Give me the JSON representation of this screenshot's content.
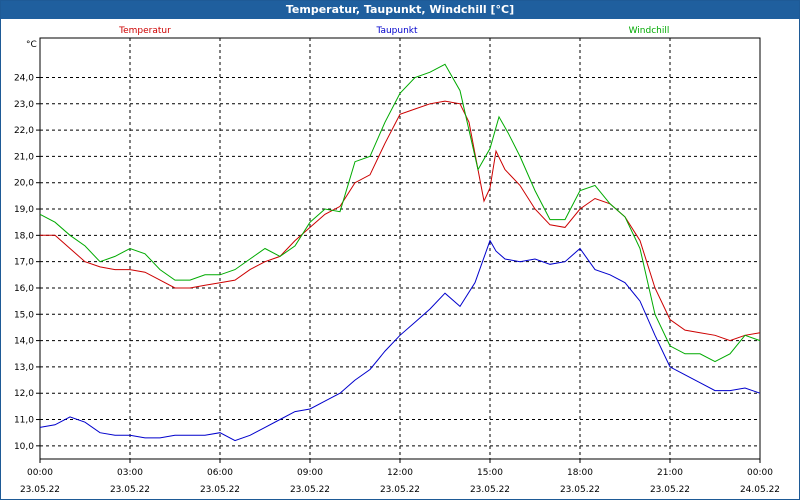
{
  "window": {
    "title": "Temperatur, Taupunkt, Windchill [°C]"
  },
  "chart_data": {
    "type": "line",
    "title": "Temperatur, Taupunkt, Windchill [°C]",
    "yunit": "°C",
    "ylim": [
      9.5,
      25.5
    ],
    "xlim": [
      0,
      24
    ],
    "yticks": [
      10.0,
      11.0,
      12.0,
      13.0,
      14.0,
      15.0,
      16.0,
      17.0,
      18.0,
      19.0,
      20.0,
      21.0,
      22.0,
      23.0,
      24.0
    ],
    "ytick_labels": [
      "10,0",
      "11,0",
      "12,0",
      "13,0",
      "14,0",
      "15,0",
      "16,0",
      "17,0",
      "18,0",
      "19,0",
      "20,0",
      "21,0",
      "22,0",
      "23,0",
      "24,0"
    ],
    "xticks": [
      0,
      3,
      6,
      9,
      12,
      15,
      18,
      21,
      24
    ],
    "xtick_labels": [
      {
        "time": "00:00",
        "date": "23.05.22"
      },
      {
        "time": "03:00",
        "date": "23.05.22"
      },
      {
        "time": "06:00",
        "date": "23.05.22"
      },
      {
        "time": "09:00",
        "date": "23.05.22"
      },
      {
        "time": "12:00",
        "date": "23.05.22"
      },
      {
        "time": "15:00",
        "date": "23.05.22"
      },
      {
        "time": "18:00",
        "date": "23.05.22"
      },
      {
        "time": "21:00",
        "date": "23.05.22"
      },
      {
        "time": "00:00",
        "date": "24.05.22"
      }
    ],
    "grid": true,
    "legend_position": "top",
    "series": [
      {
        "name": "Temperatur",
        "color": "#cc0000",
        "points": [
          [
            0.0,
            18.0
          ],
          [
            0.5,
            18.0
          ],
          [
            1.0,
            17.5
          ],
          [
            1.5,
            17.0
          ],
          [
            2.0,
            16.8
          ],
          [
            2.5,
            16.7
          ],
          [
            3.0,
            16.7
          ],
          [
            3.5,
            16.6
          ],
          [
            4.0,
            16.3
          ],
          [
            4.5,
            16.0
          ],
          [
            5.0,
            16.0
          ],
          [
            5.5,
            16.1
          ],
          [
            6.0,
            16.2
          ],
          [
            6.5,
            16.3
          ],
          [
            7.0,
            16.7
          ],
          [
            7.5,
            17.0
          ],
          [
            8.0,
            17.2
          ],
          [
            8.5,
            17.8
          ],
          [
            9.0,
            18.3
          ],
          [
            9.5,
            18.8
          ],
          [
            10.0,
            19.1
          ],
          [
            10.5,
            20.0
          ],
          [
            11.0,
            20.3
          ],
          [
            11.5,
            21.5
          ],
          [
            12.0,
            22.6
          ],
          [
            12.5,
            22.8
          ],
          [
            13.0,
            23.0
          ],
          [
            13.5,
            23.1
          ],
          [
            14.0,
            23.0
          ],
          [
            14.3,
            22.3
          ],
          [
            14.6,
            20.5
          ],
          [
            14.8,
            19.3
          ],
          [
            15.0,
            19.8
          ],
          [
            15.2,
            21.2
          ],
          [
            15.5,
            20.5
          ],
          [
            16.0,
            19.9
          ],
          [
            16.5,
            19.0
          ],
          [
            17.0,
            18.4
          ],
          [
            17.5,
            18.3
          ],
          [
            18.0,
            19.0
          ],
          [
            18.5,
            19.4
          ],
          [
            19.0,
            19.2
          ],
          [
            19.5,
            18.7
          ],
          [
            20.0,
            17.8
          ],
          [
            20.5,
            16.0
          ],
          [
            21.0,
            14.8
          ],
          [
            21.5,
            14.4
          ],
          [
            22.0,
            14.3
          ],
          [
            22.5,
            14.2
          ],
          [
            23.0,
            14.0
          ],
          [
            23.5,
            14.2
          ],
          [
            24.0,
            14.3
          ]
        ]
      },
      {
        "name": "Taupunkt",
        "color": "#0000cc",
        "points": [
          [
            0.0,
            10.7
          ],
          [
            0.5,
            10.8
          ],
          [
            1.0,
            11.1
          ],
          [
            1.5,
            10.9
          ],
          [
            2.0,
            10.5
          ],
          [
            2.5,
            10.4
          ],
          [
            3.0,
            10.4
          ],
          [
            3.5,
            10.3
          ],
          [
            4.0,
            10.3
          ],
          [
            4.5,
            10.4
          ],
          [
            5.0,
            10.4
          ],
          [
            5.5,
            10.4
          ],
          [
            6.0,
            10.5
          ],
          [
            6.5,
            10.2
          ],
          [
            7.0,
            10.4
          ],
          [
            7.5,
            10.7
          ],
          [
            8.0,
            11.0
          ],
          [
            8.5,
            11.3
          ],
          [
            9.0,
            11.4
          ],
          [
            9.5,
            11.7
          ],
          [
            10.0,
            12.0
          ],
          [
            10.5,
            12.5
          ],
          [
            11.0,
            12.9
          ],
          [
            11.5,
            13.6
          ],
          [
            12.0,
            14.2
          ],
          [
            12.5,
            14.7
          ],
          [
            13.0,
            15.2
          ],
          [
            13.5,
            15.8
          ],
          [
            14.0,
            15.3
          ],
          [
            14.5,
            16.2
          ],
          [
            15.0,
            17.8
          ],
          [
            15.2,
            17.4
          ],
          [
            15.5,
            17.1
          ],
          [
            16.0,
            17.0
          ],
          [
            16.5,
            17.1
          ],
          [
            17.0,
            16.9
          ],
          [
            17.5,
            17.0
          ],
          [
            18.0,
            17.5
          ],
          [
            18.5,
            16.7
          ],
          [
            19.0,
            16.5
          ],
          [
            19.5,
            16.2
          ],
          [
            20.0,
            15.5
          ],
          [
            20.5,
            14.2
          ],
          [
            21.0,
            13.0
          ],
          [
            21.5,
            12.7
          ],
          [
            22.0,
            12.4
          ],
          [
            22.5,
            12.1
          ],
          [
            23.0,
            12.1
          ],
          [
            23.5,
            12.2
          ],
          [
            24.0,
            12.0
          ]
        ]
      },
      {
        "name": "Windchill",
        "color": "#00aa00",
        "points": [
          [
            0.0,
            18.8
          ],
          [
            0.5,
            18.5
          ],
          [
            1.0,
            18.0
          ],
          [
            1.5,
            17.6
          ],
          [
            2.0,
            17.0
          ],
          [
            2.5,
            17.2
          ],
          [
            3.0,
            17.5
          ],
          [
            3.5,
            17.3
          ],
          [
            4.0,
            16.7
          ],
          [
            4.5,
            16.3
          ],
          [
            5.0,
            16.3
          ],
          [
            5.5,
            16.5
          ],
          [
            6.0,
            16.5
          ],
          [
            6.5,
            16.7
          ],
          [
            7.0,
            17.1
          ],
          [
            7.5,
            17.5
          ],
          [
            8.0,
            17.2
          ],
          [
            8.5,
            17.6
          ],
          [
            9.0,
            18.5
          ],
          [
            9.5,
            19.0
          ],
          [
            10.0,
            18.9
          ],
          [
            10.5,
            20.8
          ],
          [
            11.0,
            21.0
          ],
          [
            11.5,
            22.3
          ],
          [
            12.0,
            23.4
          ],
          [
            12.5,
            24.0
          ],
          [
            13.0,
            24.2
          ],
          [
            13.5,
            24.5
          ],
          [
            14.0,
            23.5
          ],
          [
            14.3,
            22.0
          ],
          [
            14.6,
            20.5
          ],
          [
            15.0,
            21.3
          ],
          [
            15.3,
            22.5
          ],
          [
            15.6,
            21.9
          ],
          [
            16.0,
            21.0
          ],
          [
            16.5,
            19.7
          ],
          [
            17.0,
            18.6
          ],
          [
            17.5,
            18.6
          ],
          [
            18.0,
            19.7
          ],
          [
            18.5,
            19.9
          ],
          [
            19.0,
            19.2
          ],
          [
            19.5,
            18.7
          ],
          [
            20.0,
            17.5
          ],
          [
            20.5,
            15.0
          ],
          [
            21.0,
            13.8
          ],
          [
            21.5,
            13.5
          ],
          [
            22.0,
            13.5
          ],
          [
            22.5,
            13.2
          ],
          [
            23.0,
            13.5
          ],
          [
            23.5,
            14.2
          ],
          [
            24.0,
            14.0
          ]
        ]
      }
    ]
  }
}
